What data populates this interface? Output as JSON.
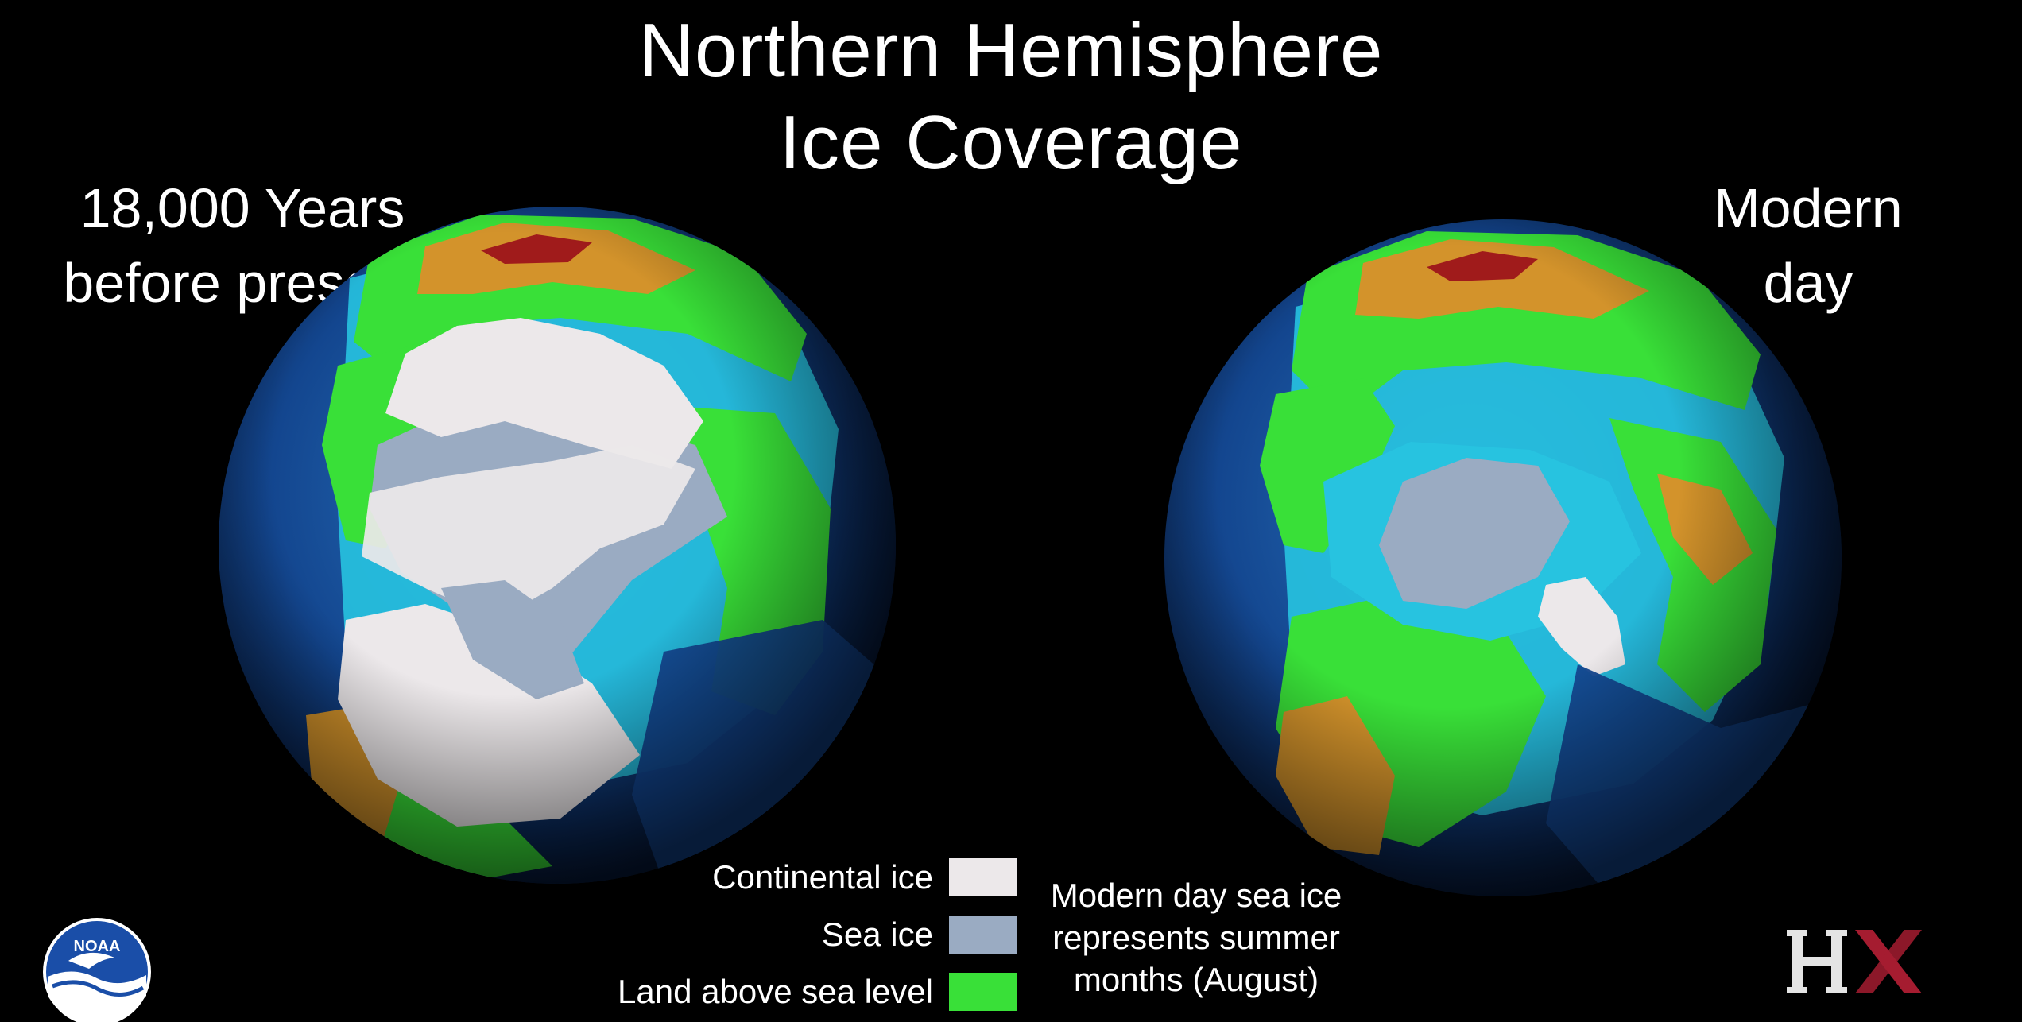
{
  "title": {
    "line1": "Northern Hemisphere",
    "line2": "Ice Coverage"
  },
  "left_caption": {
    "line1": "18,000 Years",
    "line2": "before present"
  },
  "right_caption": {
    "line1": "Modern",
    "line2": "day"
  },
  "legend": {
    "items": [
      {
        "label": "Continental ice",
        "color": "#ece8ea"
      },
      {
        "label": "Sea ice",
        "color": "#9aabc2"
      },
      {
        "label": "Land above sea level",
        "color": "#39e038"
      }
    ]
  },
  "note": {
    "line1": "Modern day sea ice",
    "line2": "represents summer",
    "line3": "months (August)"
  },
  "logos": {
    "left": "NOAA",
    "right": "HX"
  },
  "colors": {
    "background": "#000000",
    "ocean_deep": "#0f3f86",
    "ocean_shelf": "#27c3e0",
    "land_low": "#39e038",
    "land_high": "#d3932b",
    "mountains": "#a01b1b"
  }
}
